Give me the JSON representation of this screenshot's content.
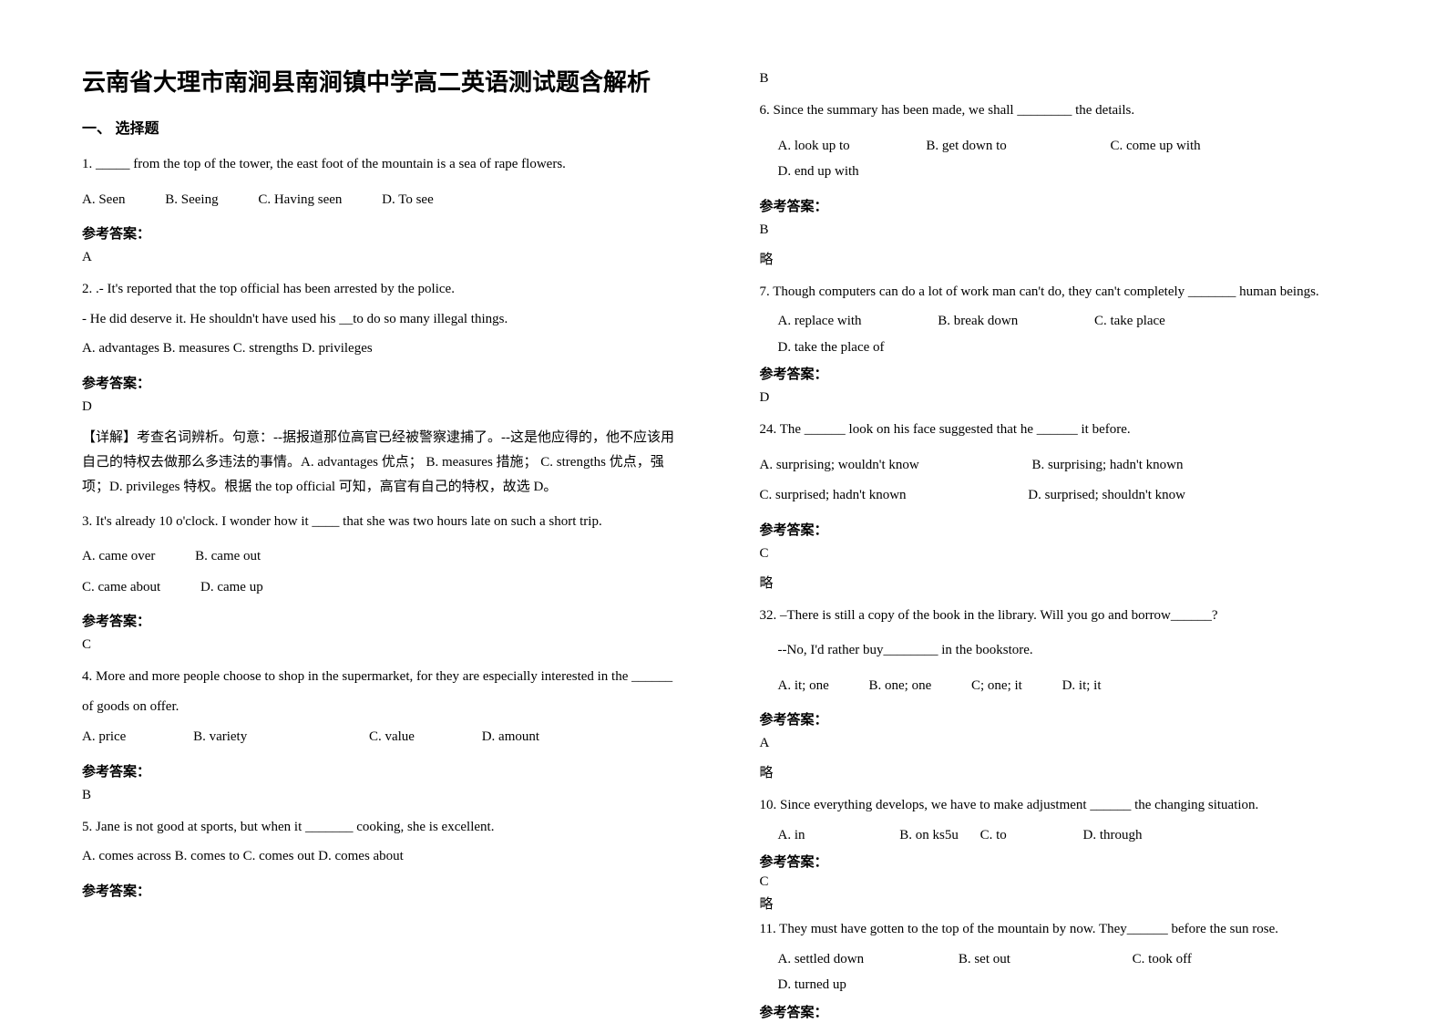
{
  "title": "云南省大理市南涧县南涧镇中学高二英语测试题含解析",
  "section_heading": "一、 选择题",
  "answer_label": "参考答案：",
  "omitted": "略",
  "col_left": {
    "q1": {
      "text": "1. _____ from the top of the tower, the east foot of the mountain is a sea of rape flowers.",
      "opts": {
        "a": "A. Seen",
        "b": "B. Seeing",
        "c": "C. Having seen",
        "d": "D. To see"
      },
      "answer": "A"
    },
    "q2": {
      "line1": "2. .- It's reported that the top official has been arrested by the police.",
      "line2": "- He did deserve it. He shouldn't have used his __to do so many illegal things.",
      "opts_line": "A. advantages    B. measures    C. strengths D. privileges",
      "answer": "D",
      "explanation": "【详解】考查名词辨析。句意：--据报道那位高官已经被警察逮捕了。--这是他应得的，他不应该用自己的特权去做那么多违法的事情。A. advantages 优点； B. measures 措施； C. strengths 优点，强项；D. privileges 特权。根据 the top official 可知，高官有自己的特权，故选 D。"
    },
    "q3": {
      "text": "3. It's already 10 o'clock. I wonder how it ____ that she was two hours late on such a short trip.",
      "opts": {
        "a": "A. came over",
        "b": "B. came out",
        "c": "C. came about",
        "d": "D. came up"
      },
      "answer": "C"
    },
    "q4": {
      "line1": "4. More and more people choose to shop in the supermarket, for they are especially interested in the ______",
      "line2": "of goods on offer.",
      "opts": {
        "a": "A. price",
        "b": "B. variety",
        "c": "C. value",
        "d": "D. amount"
      },
      "answer": "B"
    },
    "q5": {
      "text": "5. Jane is not good at sports, but when it   _______ cooking, she is excellent.",
      "opts_line": "A. comes across    B. comes to    C. comes out    D. comes about"
    }
  },
  "col_right": {
    "q5_answer": "B",
    "q6": {
      "text": "6. Since the summary has been made, we shall ________ the details.",
      "opts": {
        "a": "A. look up to",
        "b": "B. get down to",
        "c": "C. come up with",
        "d": "D. end up with"
      },
      "answer": "B"
    },
    "q7": {
      "text": "7. Though computers can do a lot of work man can't do, they can't completely _______ human beings.",
      "opts": {
        "a": "A. replace with",
        "b": "B. break down",
        "c": "C. take place",
        "d": "D. take the place of"
      },
      "answer": "D"
    },
    "q24": {
      "text": "24. The ______ look on his face suggested that he ______ it before.",
      "opts": {
        "a": "A. surprising; wouldn't know",
        "b": "B. surprising; hadn't known",
        "c": "C. surprised; hadn't known",
        "d": "D. surprised; shouldn't know"
      },
      "answer": "C"
    },
    "q32": {
      "line1": "32. –There is still a copy of the book in the library. Will you go and borrow______?",
      "line2": "--No, I'd rather buy________ in the bookstore.",
      "opts": {
        "a": "A. it; one",
        "b": "B. one; one",
        "c": "C; one; it",
        "d": "D. it; it"
      },
      "answer": "A"
    },
    "q10": {
      "text": "10. Since everything develops, we have to make adjustment ______ the changing situation.",
      "opts": {
        "a": "A. in",
        "b": "B. on    ks5u",
        "c": "C. to",
        "d": "D. through"
      },
      "answer": "C",
      "after": "略"
    },
    "q11": {
      "text": "11. They must have gotten to the top of the mountain by now. They______ before the sun rose.",
      "opts": {
        "a": "A. settled down",
        "b": "B. set out",
        "c": "C. took off",
        "d": "D. turned up"
      }
    }
  }
}
